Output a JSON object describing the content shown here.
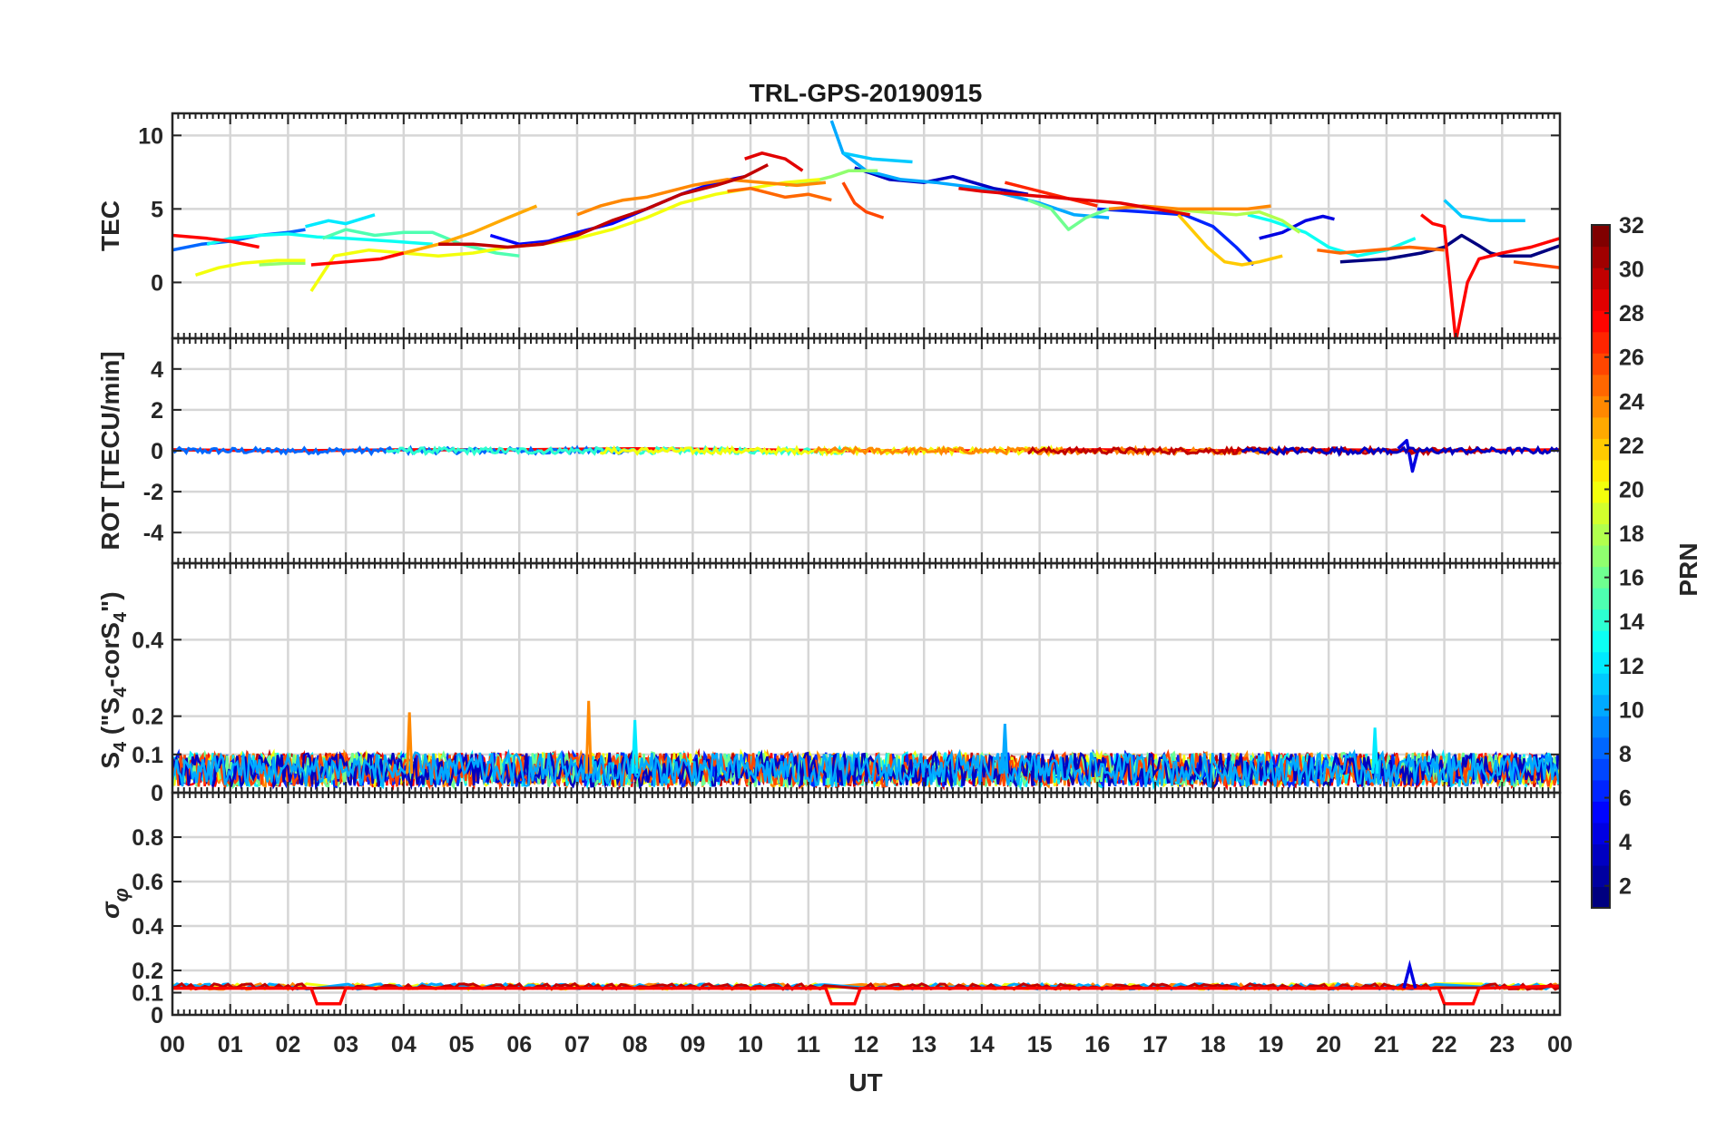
{
  "chart_data": {
    "type": "line",
    "title": "TRL-GPS-20190915",
    "xlabel": "UT",
    "x_ticks": [
      "00",
      "01",
      "02",
      "03",
      "04",
      "05",
      "06",
      "07",
      "08",
      "09",
      "10",
      "11",
      "12",
      "13",
      "14",
      "15",
      "16",
      "17",
      "18",
      "19",
      "20",
      "21",
      "22",
      "23",
      "00"
    ],
    "xlim": [
      0,
      24
    ],
    "grid": true,
    "colorbar": {
      "label": "PRN",
      "range": [
        1,
        32
      ],
      "ticks": [
        "2",
        "4",
        "6",
        "8",
        "10",
        "12",
        "14",
        "16",
        "18",
        "20",
        "22",
        "24",
        "26",
        "28",
        "30",
        "32"
      ],
      "colormap": "jet",
      "placement": "right"
    },
    "panels": [
      {
        "id": "tec",
        "ylabel": "TEC",
        "ylim": [
          -3.8,
          11.5
        ],
        "y_ticks": [
          0,
          5,
          10
        ],
        "y_tick_labels": [
          "0",
          "5",
          "10"
        ],
        "series": [
          {
            "prn": 1,
            "x": [
              20.2,
              21.0,
              21.6,
              22.0,
              22.3,
              22.6,
              22.8,
              23.0,
              23.5,
              24.0
            ],
            "y": [
              1.4,
              1.6,
              2.0,
              2.4,
              3.2,
              2.5,
              2.0,
              1.8,
              1.8,
              2.5
            ]
          },
          {
            "prn": 3,
            "x": [
              11.8,
              12.4,
              13.0,
              13.5,
              14.2,
              14.8
            ],
            "y": [
              7.8,
              7.0,
              6.8,
              7.2,
              6.4,
              6.0
            ]
          },
          {
            "prn": 4,
            "x": [
              18.8,
              19.2,
              19.6,
              19.9,
              20.1
            ],
            "y": [
              3.0,
              3.4,
              4.2,
              4.5,
              4.3
            ]
          },
          {
            "prn": 5,
            "x": [
              5.5,
              6.0,
              6.5,
              7.0,
              7.6,
              8.2,
              8.8,
              9.4,
              9.9
            ],
            "y": [
              3.2,
              2.6,
              2.8,
              3.4,
              4.0,
              5.0,
              6.0,
              6.8,
              7.2
            ]
          },
          {
            "prn": 6,
            "x": [
              16.0,
              16.8,
              17.5,
              18.0,
              18.4,
              18.7
            ],
            "y": [
              5.0,
              4.8,
              4.6,
              3.8,
              2.4,
              1.2
            ]
          },
          {
            "prn": 8,
            "x": [
              0.0,
              0.5,
              1.0,
              1.5,
              2.0,
              2.3
            ],
            "y": [
              2.2,
              2.6,
              2.8,
              3.2,
              3.4,
              3.6
            ]
          },
          {
            "prn": 10,
            "x": [
              11.4,
              11.6,
              12.0,
              12.6,
              13.2,
              14.0,
              15.0,
              15.6,
              16.2
            ],
            "y": [
              11.0,
              8.8,
              7.6,
              7.0,
              6.8,
              6.4,
              5.4,
              4.6,
              4.4
            ]
          },
          {
            "prn": 11,
            "x": [
              11.6,
              12.1,
              12.8
            ],
            "y": [
              8.8,
              8.4,
              8.2
            ]
          },
          {
            "prn": 11,
            "x": [
              22.0,
              22.3,
              22.8,
              23.4
            ],
            "y": [
              5.6,
              4.5,
              4.2,
              4.2
            ]
          },
          {
            "prn": 12,
            "x": [
              2.3,
              2.7,
              3.0,
              3.5
            ],
            "y": [
              3.8,
              4.2,
              4.0,
              4.6
            ]
          },
          {
            "prn": 13,
            "x": [
              0.6,
              1.0,
              1.5,
              2.0,
              2.5,
              3.0,
              3.8,
              4.5
            ],
            "y": [
              2.6,
              3.0,
              3.2,
              3.3,
              3.1,
              3.0,
              2.8,
              2.6
            ]
          },
          {
            "prn": 13,
            "x": [
              18.6,
              19.0,
              19.6,
              20.0,
              20.5,
              21.0,
              21.5
            ],
            "y": [
              4.6,
              4.2,
              3.4,
              2.4,
              1.8,
              2.2,
              3.0
            ]
          },
          {
            "prn": 15,
            "x": [
              2.6,
              3.0,
              3.5,
              4.0,
              4.5,
              5.0,
              5.6,
              6.0
            ],
            "y": [
              3.0,
              3.6,
              3.2,
              3.4,
              3.4,
              2.6,
              2.0,
              1.8
            ]
          },
          {
            "prn": 16,
            "x": [
              14.8,
              15.2,
              15.5,
              15.8,
              16.2
            ],
            "y": [
              5.6,
              5.0,
              3.6,
              4.4,
              5.0
            ]
          },
          {
            "prn": 17,
            "x": [
              1.5,
              2.0,
              2.3
            ],
            "y": [
              1.2,
              1.3,
              1.3
            ]
          },
          {
            "prn": 17,
            "x": [
              10.6,
              11.0,
              11.4,
              11.7,
              12.2
            ],
            "y": [
              6.6,
              6.8,
              7.2,
              7.6,
              7.6
            ]
          },
          {
            "prn": 18,
            "x": [
              16.6,
              17.2,
              17.8,
              18.4,
              18.8,
              19.2,
              19.5
            ],
            "y": [
              5.2,
              5.0,
              4.8,
              4.6,
              4.8,
              4.2,
              3.4
            ]
          },
          {
            "prn": 20,
            "x": [
              0.4,
              0.8,
              1.2,
              1.8,
              2.3
            ],
            "y": [
              0.5,
              1.0,
              1.3,
              1.5,
              1.5
            ]
          },
          {
            "prn": 20,
            "x": [
              2.4,
              2.8,
              3.4,
              4.0,
              4.6,
              5.2,
              5.8,
              6.4,
              7.0,
              7.6,
              8.2,
              8.8,
              9.4,
              10.0,
              10.6,
              11.2
            ],
            "y": [
              -0.6,
              1.8,
              2.2,
              2.0,
              1.8,
              2.0,
              2.4,
              2.6,
              3.0,
              3.6,
              4.4,
              5.4,
              6.0,
              6.4,
              6.8,
              7.0
            ]
          },
          {
            "prn": 22,
            "x": [
              17.4,
              17.9,
              18.2,
              18.5,
              18.8,
              19.2
            ],
            "y": [
              4.6,
              2.4,
              1.4,
              1.2,
              1.4,
              1.8
            ]
          },
          {
            "prn": 23,
            "x": [
              4.0,
              4.6,
              5.2,
              5.8,
              6.3
            ],
            "y": [
              2.0,
              2.6,
              3.4,
              4.4,
              5.2
            ]
          },
          {
            "prn": 24,
            "x": [
              7.0,
              7.4,
              7.8,
              8.2,
              8.6,
              9.0,
              9.6,
              10.2,
              10.8,
              11.3
            ],
            "y": [
              4.6,
              5.2,
              5.6,
              5.8,
              6.2,
              6.6,
              7.0,
              6.8,
              6.6,
              6.8
            ]
          },
          {
            "prn": 24,
            "x": [
              16.2,
              16.8,
              17.4,
              18.0,
              18.6,
              19.0
            ],
            "y": [
              5.0,
              5.2,
              5.0,
              5.0,
              5.0,
              5.2
            ]
          },
          {
            "prn": 25,
            "x": [
              9.6,
              10.0,
              10.6,
              11.0,
              11.4
            ],
            "y": [
              6.2,
              6.4,
              5.8,
              6.0,
              5.6
            ]
          },
          {
            "prn": 25,
            "x": [
              19.8,
              20.2,
              20.8,
              21.4,
              22.0
            ],
            "y": [
              2.2,
              2.0,
              2.2,
              2.4,
              2.2
            ]
          },
          {
            "prn": 26,
            "x": [
              11.6,
              11.8,
              12.0,
              12.3
            ],
            "y": [
              6.8,
              5.4,
              4.8,
              4.4
            ]
          },
          {
            "prn": 26,
            "x": [
              23.2,
              23.6,
              24.0
            ],
            "y": [
              1.4,
              1.2,
              1.0
            ]
          },
          {
            "prn": 27,
            "x": [
              14.4,
              15.0,
              15.6,
              16.0
            ],
            "y": [
              6.8,
              6.2,
              5.6,
              5.2
            ]
          },
          {
            "prn": 28,
            "x": [
              0.0,
              0.6,
              1.0,
              1.5
            ],
            "y": [
              3.2,
              3.0,
              2.8,
              2.4
            ]
          },
          {
            "prn": 28,
            "x": [
              2.4,
              3.0,
              3.6,
              4.0
            ],
            "y": [
              1.2,
              1.4,
              1.6,
              2.0
            ]
          },
          {
            "prn": 28,
            "x": [
              21.6,
              21.8,
              22.0,
              22.2,
              22.4,
              22.6,
              23.0,
              23.5,
              24.0
            ],
            "y": [
              4.6,
              4.0,
              3.8,
              -4.0,
              0.0,
              1.6,
              2.0,
              2.4,
              3.0
            ]
          },
          {
            "prn": 29,
            "x": [
              9.9,
              10.2,
              10.6,
              10.9
            ],
            "y": [
              8.4,
              8.8,
              8.4,
              7.6
            ]
          },
          {
            "prn": 29,
            "x": [
              13.6,
              14.0,
              14.6,
              15.2,
              15.8,
              16.4,
              17.0,
              17.6
            ],
            "y": [
              6.4,
              6.2,
              6.0,
              5.8,
              5.6,
              5.4,
              5.0,
              4.6
            ]
          },
          {
            "prn": 30,
            "x": [
              4.6,
              5.2,
              5.8,
              6.4,
              7.0,
              7.6,
              8.2,
              8.8,
              9.4,
              9.9,
              10.3
            ],
            "y": [
              2.6,
              2.6,
              2.4,
              2.6,
              3.2,
              4.2,
              5.0,
              6.0,
              6.6,
              7.2,
              8.0
            ]
          }
        ]
      },
      {
        "id": "rot",
        "ylabel": "ROT [TECU/min]",
        "ylim": [
          -5.5,
          5.5
        ],
        "y_ticks": [
          -4,
          -2,
          0,
          2,
          4
        ],
        "y_tick_labels": [
          "-4",
          "-2",
          "0",
          "2",
          "4"
        ],
        "description": "ROT values near 0 (within about ±0.3 TECU/min) across all PRNs; brief excursion to about -1.0 near 21.5 UT",
        "series": [
          {
            "prn": 28,
            "x": [
              0,
              2,
              4,
              6,
              8,
              10,
              12,
              14,
              16,
              18,
              20,
              22,
              24
            ],
            "y": [
              0.05,
              0.0,
              0.05,
              0.05,
              0.1,
              0.05,
              0.0,
              0.0,
              0.05,
              0.0,
              0.05,
              0.0,
              0.05
            ]
          },
          {
            "prn": 4,
            "x": [
              21.2,
              21.35,
              21.45,
              21.55
            ],
            "y": [
              0.1,
              0.5,
              -1.0,
              0.1
            ]
          }
        ]
      },
      {
        "id": "s4",
        "ylabel": "S4 (\"S4-corS4\")",
        "ylim": [
          0,
          0.6
        ],
        "y_ticks": [
          0,
          0.1,
          0.2,
          0.4
        ],
        "y_tick_labels": [
          "0",
          "0.1",
          "0.2",
          "0.4"
        ],
        "description": "S4 index mostly between 0 and 0.12 for all PRNs; peaks near 0.24 at 07.2 UT and 0.21 at 04.1 UT",
        "peaks": [
          {
            "prn": 24,
            "x": 7.2,
            "y": 0.24
          },
          {
            "prn": 24,
            "x": 4.1,
            "y": 0.21
          },
          {
            "prn": 12,
            "x": 8.0,
            "y": 0.19
          },
          {
            "prn": 10,
            "x": 14.4,
            "y": 0.18
          },
          {
            "prn": 12,
            "x": 20.8,
            "y": 0.17
          }
        ]
      },
      {
        "id": "sigma_phi",
        "ylabel": "σφ",
        "ylim": [
          0,
          1.0
        ],
        "y_ticks": [
          0,
          0.1,
          0.2,
          0.4,
          0.6,
          0.8
        ],
        "y_tick_labels": [
          "0",
          "0.1",
          "0.2",
          "0.4",
          "0.6",
          "0.8"
        ],
        "description": "Phase scintillation index stable near 0.12 for all PRNs; dips to about 0.05 near 02.5 and 11.5 UT; spike to 0.22 near 21.4 UT",
        "series": [
          {
            "prn": 28,
            "x": [
              0,
              2.4,
              2.5,
              2.6,
              2.9,
              3.0,
              11.3,
              11.4,
              11.8,
              11.9,
              21.9,
              22.0,
              22.5,
              22.6,
              24.0
            ],
            "y": [
              0.12,
              0.12,
              0.05,
              0.05,
              0.05,
              0.12,
              0.12,
              0.05,
              0.05,
              0.12,
              0.12,
              0.05,
              0.05,
              0.12,
              0.13
            ]
          },
          {
            "prn": 4,
            "x": [
              21.3,
              21.4,
              21.5
            ],
            "y": [
              0.12,
              0.22,
              0.12
            ]
          }
        ]
      }
    ]
  }
}
